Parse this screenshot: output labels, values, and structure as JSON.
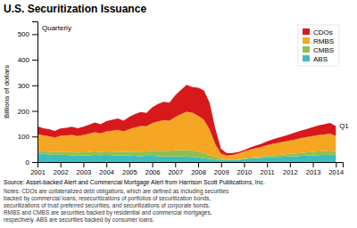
{
  "chart_data": {
    "type": "area",
    "stacked": true,
    "title": "U.S. Securitization Issuance",
    "y_label": "Billions of dollars",
    "annotations": [
      {
        "text": "Quarterly"
      },
      {
        "text": "Q1",
        "x": 2014.15,
        "y": 140
      }
    ],
    "source": "Source: Asset-backed Alert and Commercial Mortgage Alert from Harrison Scott Publications, Inc.",
    "notes": [
      "Notes: CDOs are collateralized debt obligations, which are defined as including securities",
      "backed by commercial loans, resecuritizations of portfolios of securitization bonds,",
      "securitizations of trust preferred securities, and securitizations of corporate bonds.",
      "RMBS and CMBS are securities backed by residential and commercial mortgages,",
      "respectively. ABS are securities backed by consumer loans."
    ],
    "x": [
      2001,
      2001.25,
      2001.5,
      2001.75,
      2002,
      2002.25,
      2002.5,
      2002.75,
      2003,
      2003.25,
      2003.5,
      2003.75,
      2004,
      2004.25,
      2004.5,
      2004.75,
      2005,
      2005.25,
      2005.5,
      2005.75,
      2006,
      2006.25,
      2006.5,
      2006.75,
      2007,
      2007.25,
      2007.5,
      2007.75,
      2008,
      2008.25,
      2008.5,
      2008.75,
      2009,
      2009.25,
      2009.5,
      2009.75,
      2010,
      2010.25,
      2010.5,
      2010.75,
      2011,
      2011.25,
      2011.5,
      2011.75,
      2012,
      2012.25,
      2012.5,
      2012.75,
      2013,
      2013.25,
      2013.5,
      2013.75,
      2014
    ],
    "series": [
      {
        "name": "ABS",
        "color": "#3bbcbf",
        "values": [
          35,
          32,
          30,
          28,
          30,
          28,
          26,
          25,
          25,
          26,
          28,
          27,
          28,
          27,
          26,
          25,
          25,
          24,
          23,
          24,
          24,
          23,
          22,
          22,
          22,
          22,
          21,
          20,
          18,
          15,
          12,
          10,
          8,
          7,
          8,
          9,
          12,
          14,
          15,
          16,
          18,
          19,
          20,
          21,
          22,
          23,
          24,
          25,
          26,
          27,
          28,
          29,
          28
        ]
      },
      {
        "name": "CMBS",
        "color": "#8fc04f",
        "values": [
          10,
          10,
          11,
          10,
          11,
          11,
          12,
          12,
          13,
          13,
          14,
          13,
          14,
          14,
          15,
          15,
          16,
          17,
          18,
          18,
          20,
          21,
          22,
          22,
          24,
          25,
          26,
          25,
          23,
          20,
          15,
          10,
          5,
          3,
          2,
          2,
          2,
          3,
          4,
          5,
          6,
          7,
          8,
          9,
          10,
          11,
          12,
          13,
          14,
          15,
          15,
          16,
          15
        ]
      },
      {
        "name": "RMBS",
        "color": "#f5a623",
        "values": [
          65,
          62,
          60,
          58,
          62,
          65,
          68,
          65,
          68,
          72,
          75,
          72,
          78,
          82,
          85,
          80,
          88,
          95,
          100,
          98,
          108,
          115,
          120,
          118,
          130,
          140,
          150,
          148,
          140,
          130,
          100,
          50,
          20,
          15,
          18,
          22,
          28,
          32,
          35,
          38,
          42,
          45,
          48,
          50,
          52,
          55,
          58,
          60,
          62,
          64,
          65,
          66,
          60
        ]
      },
      {
        "name": "CDOs",
        "color": "#d7191c",
        "values": [
          30,
          28,
          28,
          26,
          28,
          30,
          32,
          30,
          32,
          35,
          38,
          36,
          40,
          42,
          45,
          42,
          48,
          52,
          55,
          52,
          62,
          68,
          72,
          70,
          85,
          95,
          105,
          100,
          110,
          115,
          105,
          60,
          18,
          10,
          8,
          6,
          5,
          8,
          10,
          12,
          15,
          18,
          20,
          22,
          25,
          28,
          30,
          32,
          35,
          38,
          40,
          42,
          38
        ]
      }
    ],
    "xlim": [
      2001,
      2014.3
    ],
    "xticks": [
      2001,
      2002,
      2003,
      2004,
      2005,
      2006,
      2007,
      2008,
      2009,
      2010,
      2011,
      2012,
      2013,
      2014
    ],
    "ylim": [
      0,
      550
    ],
    "yticks": [
      0,
      100,
      200,
      300,
      400,
      500
    ],
    "grid": false,
    "legend": "upper right"
  }
}
